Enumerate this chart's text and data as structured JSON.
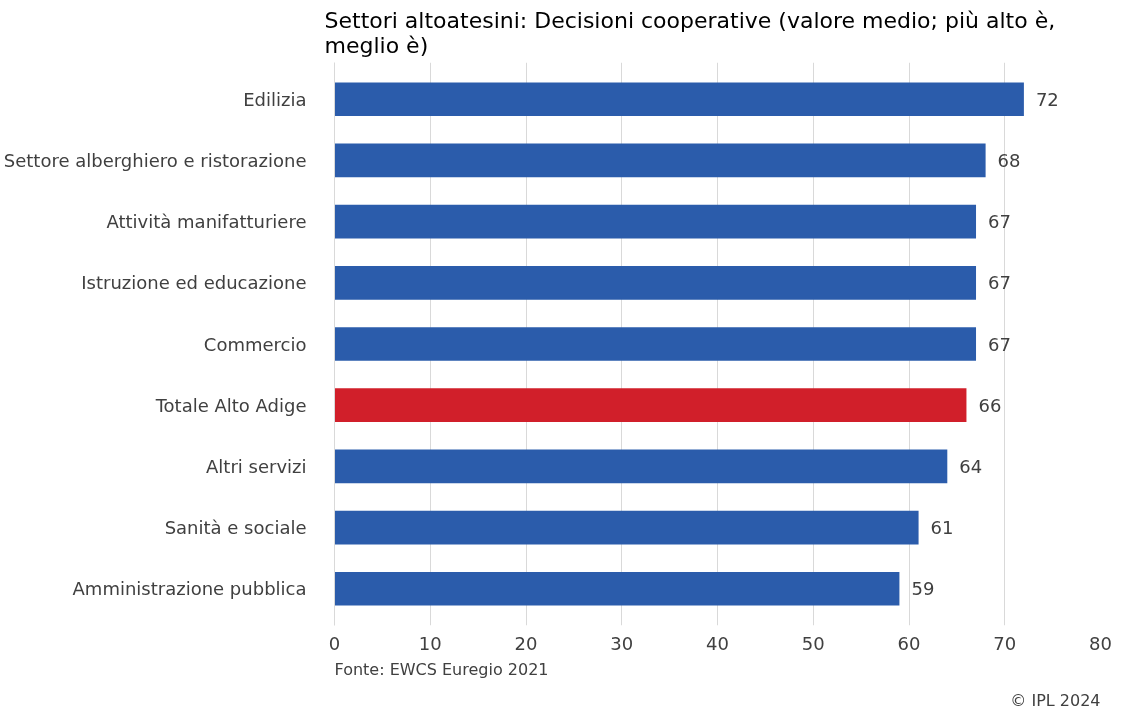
{
  "chart_data": {
    "type": "bar",
    "orientation": "horizontal",
    "title": "Settori altoatesini: Decisioni cooperative (valore medio; più alto è,\nmeglio è)",
    "categories": [
      "Edilizia",
      "Settore alberghiero e ristorazione",
      "Attività manifatturiere",
      "Istruzione ed educazione",
      "Commercio",
      "Totale Alto Adige",
      "Altri servizi",
      "Sanità e sociale",
      "Amministrazione pubblica"
    ],
    "values": [
      72,
      68,
      67,
      67,
      67,
      66,
      64,
      61,
      59
    ],
    "colors": [
      "#2b5cab",
      "#2b5cab",
      "#2b5cab",
      "#2b5cab",
      "#2b5cab",
      "#d11f2a",
      "#2b5cab",
      "#2b5cab",
      "#2b5cab"
    ],
    "xlim": [
      0,
      80
    ],
    "xticks": [
      0,
      10,
      20,
      30,
      40,
      50,
      60,
      70,
      80
    ],
    "grid": "x",
    "data_labels": true,
    "annotations": [
      "Fonte: EWCS Euregio 2021",
      "© IPL 2024"
    ]
  }
}
